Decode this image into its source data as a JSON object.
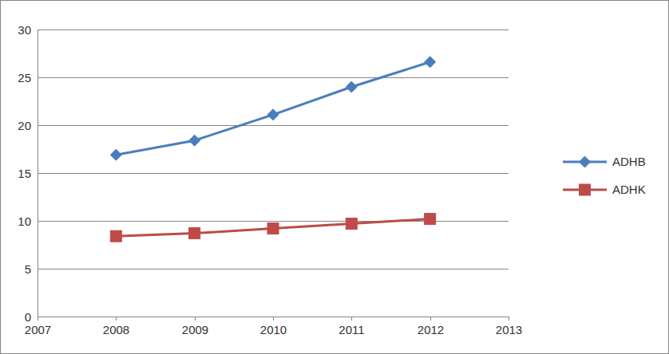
{
  "chart_data": {
    "type": "line",
    "x": [
      2008,
      2009,
      2010,
      2011,
      2012
    ],
    "xlim": [
      2007,
      2013
    ],
    "xticks": [
      2007,
      2008,
      2009,
      2010,
      2011,
      2012,
      2013
    ],
    "ylim": [
      0,
      30
    ],
    "yticks": [
      0,
      5,
      10,
      15,
      20,
      25,
      30
    ],
    "grid": true,
    "legend": "right",
    "series": [
      {
        "name": "ADHB",
        "color": "#4a7ebb",
        "marker": "diamond",
        "values": [
          16.9,
          18.4,
          21.1,
          24.0,
          26.6
        ]
      },
      {
        "name": "ADHK",
        "color": "#be4b48",
        "marker": "square",
        "values": [
          8.4,
          8.7,
          9.2,
          9.7,
          10.2
        ]
      }
    ]
  }
}
